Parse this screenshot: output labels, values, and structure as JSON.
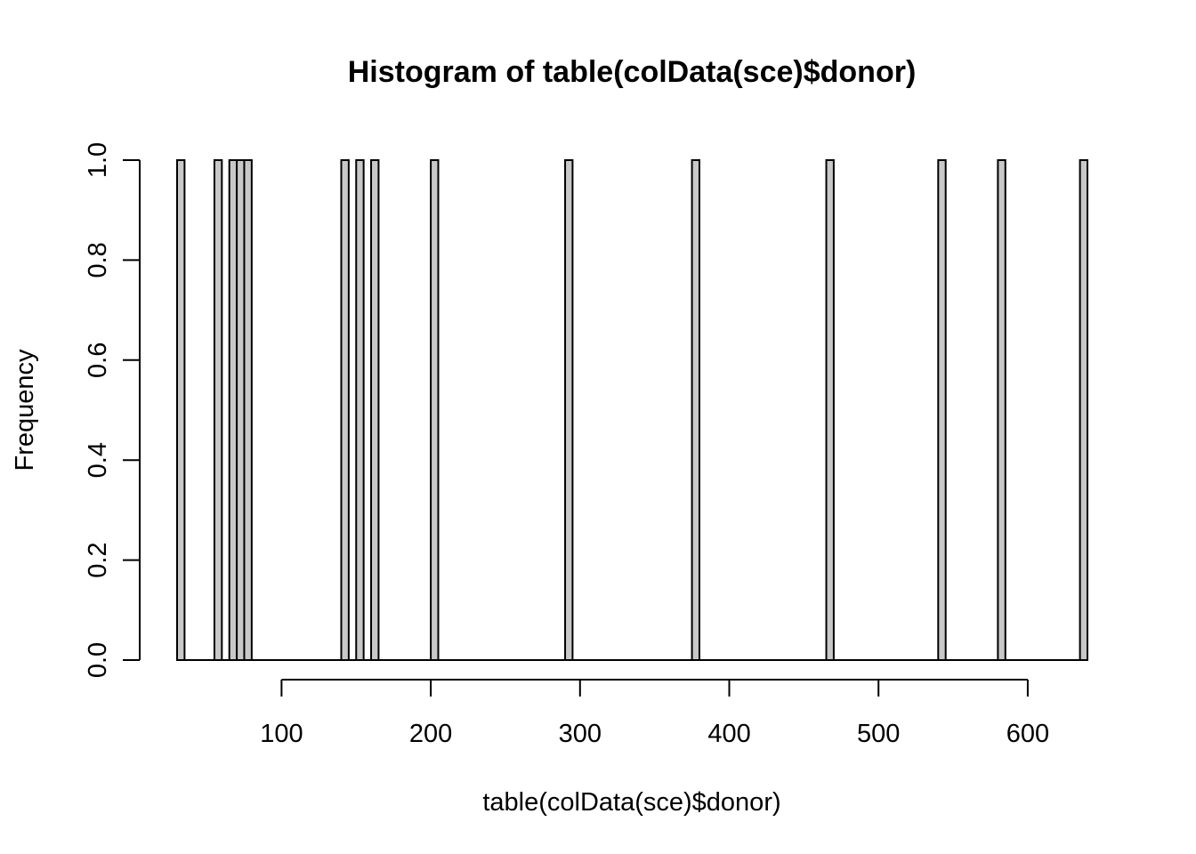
{
  "chart_data": {
    "type": "bar",
    "subtype": "histogram",
    "title": "Histogram of table(colData(sce)$donor)",
    "xlabel": "table(colData(sce)$donor)",
    "ylabel": "Frequency",
    "bin_width": 5,
    "xlim": [
      30,
      640
    ],
    "ylim": [
      0,
      1
    ],
    "x_ticks": [
      100,
      200,
      300,
      400,
      500,
      600
    ],
    "x_tick_labels": [
      "100",
      "200",
      "300",
      "400",
      "500",
      "600"
    ],
    "y_ticks": [
      0,
      0.2,
      0.4,
      0.6,
      0.8,
      1
    ],
    "y_tick_labels": [
      "0.0",
      "0.2",
      "0.4",
      "0.6",
      "0.8",
      "1.0"
    ],
    "nonzero_bins": [
      {
        "x0": 30,
        "x1": 35,
        "count": 1
      },
      {
        "x0": 55,
        "x1": 60,
        "count": 1
      },
      {
        "x0": 65,
        "x1": 70,
        "count": 1
      },
      {
        "x0": 70,
        "x1": 75,
        "count": 1
      },
      {
        "x0": 75,
        "x1": 80,
        "count": 1
      },
      {
        "x0": 140,
        "x1": 145,
        "count": 1
      },
      {
        "x0": 150,
        "x1": 155,
        "count": 1
      },
      {
        "x0": 160,
        "x1": 165,
        "count": 1
      },
      {
        "x0": 200,
        "x1": 205,
        "count": 1
      },
      {
        "x0": 290,
        "x1": 295,
        "count": 1
      },
      {
        "x0": 375,
        "x1": 380,
        "count": 1
      },
      {
        "x0": 465,
        "x1": 470,
        "count": 1
      },
      {
        "x0": 540,
        "x1": 545,
        "count": 1
      },
      {
        "x0": 580,
        "x1": 585,
        "count": 1
      },
      {
        "x0": 635,
        "x1": 640,
        "count": 1
      }
    ],
    "bar_fill": "#c8c8c8",
    "bar_stroke": "#000000",
    "grid": false
  }
}
